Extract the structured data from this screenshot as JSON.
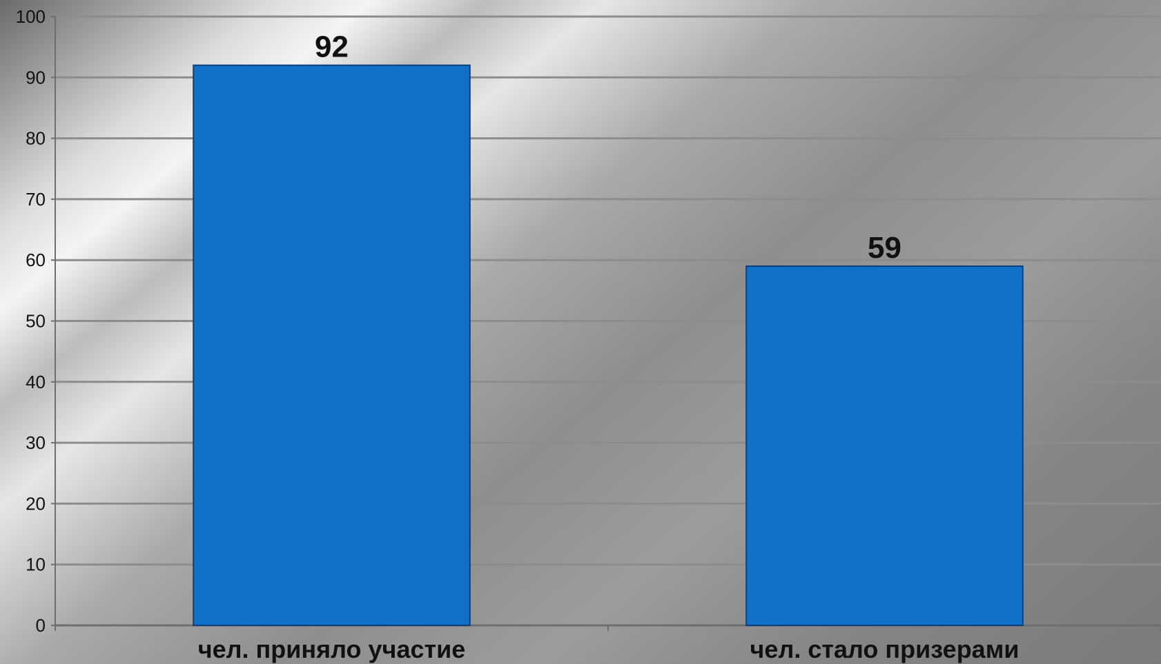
{
  "chart_data": {
    "type": "bar",
    "categories": [
      "чел. приняло участие",
      "чел. стало призерами"
    ],
    "values": [
      92,
      59
    ],
    "data_labels": [
      "92",
      "59"
    ],
    "ylim": [
      0,
      100
    ],
    "yticks": [
      "0",
      "10",
      "20",
      "30",
      "40",
      "50",
      "60",
      "70",
      "80",
      "90",
      "100"
    ],
    "grid": true,
    "legend": "none",
    "colors": {
      "bar": "#1170c8",
      "bar_edge": "#0b3f7a",
      "grid": "#8c8c8c",
      "axis": "#6e6e6e"
    }
  }
}
